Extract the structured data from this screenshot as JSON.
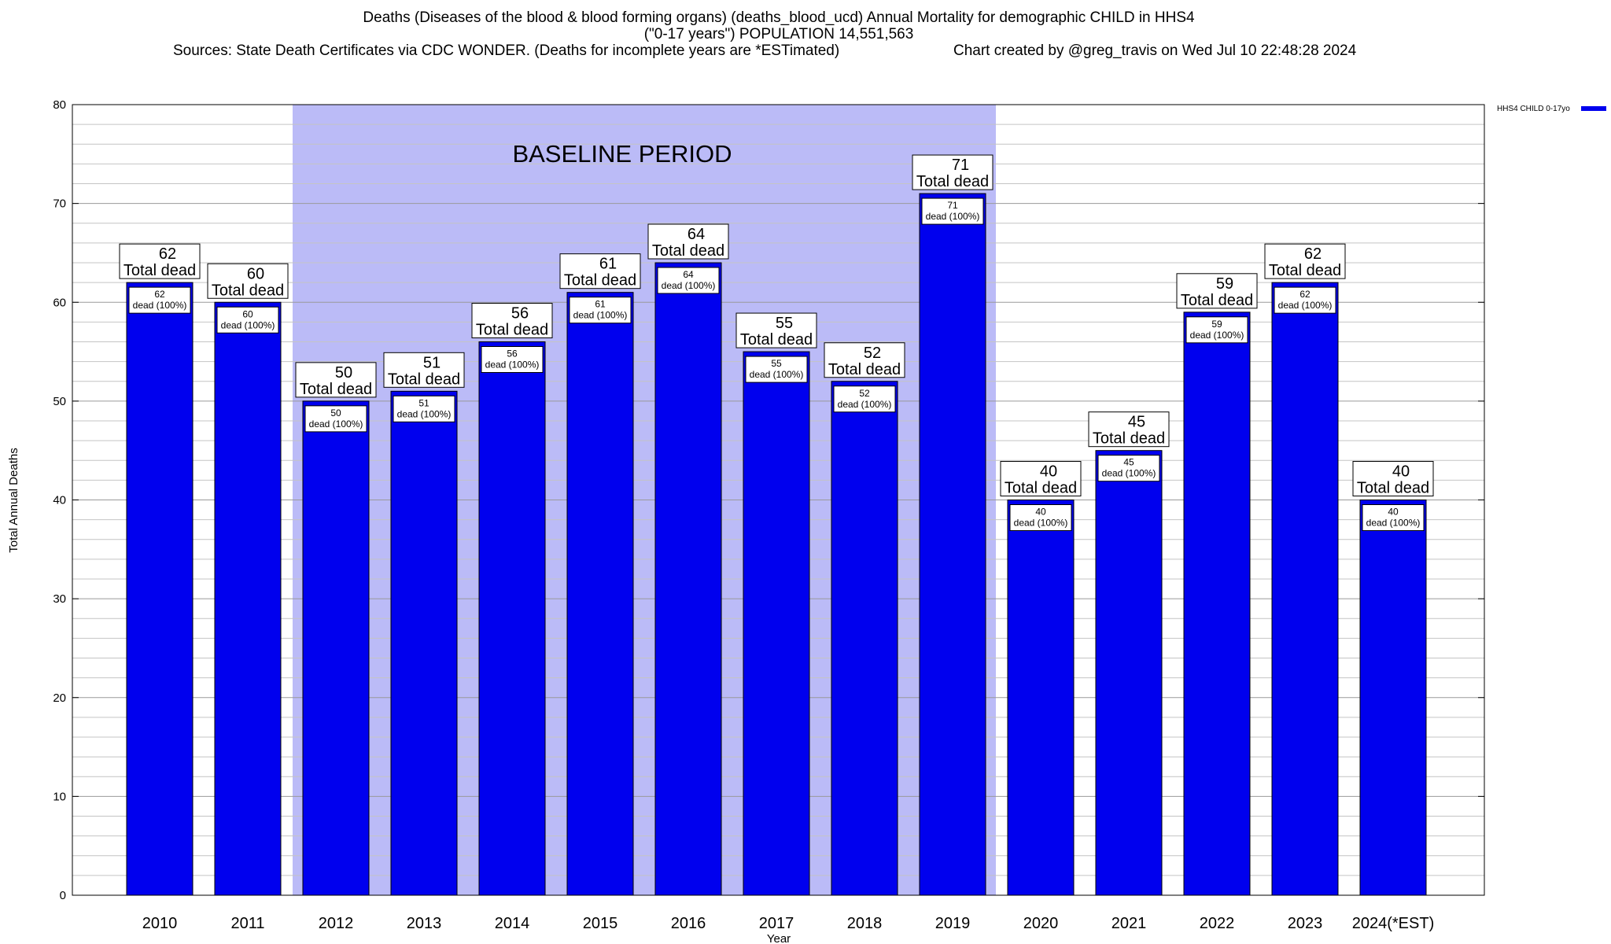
{
  "header": {
    "title_line1": "Deaths (Diseases of the blood & blood forming organs) (deaths_blood_ucd) Annual Mortality for demographic CHILD in HHS4",
    "title_line2": "(\"0-17 years\") POPULATION 14,551,563",
    "sources": "Sources: State Death Certificates via CDC WONDER. (Deaths for incomplete years are *ESTimated)",
    "credit": "Chart created by @greg_travis on Wed Jul 10 22:48:28 2024"
  },
  "chart_data": {
    "type": "bar",
    "xlabel": "Year",
    "ylabel": "Total Annual Deaths",
    "ylim": [
      0,
      80
    ],
    "y_ticks": [
      0,
      10,
      20,
      30,
      40,
      50,
      60,
      70,
      80
    ],
    "grid": true,
    "categories": [
      "2010",
      "2011",
      "2012",
      "2013",
      "2014",
      "2015",
      "2016",
      "2017",
      "2018",
      "2019",
      "2020",
      "2021",
      "2022",
      "2023",
      "2024(*EST)"
    ],
    "series": [
      {
        "name": "HHS4 CHILD 0-17yo",
        "values": [
          62,
          60,
          50,
          51,
          56,
          61,
          64,
          55,
          52,
          71,
          40,
          45,
          59,
          62,
          40
        ]
      }
    ],
    "bar_label_line2": "Total dead",
    "inner_label_suffix": "dead (100%)",
    "baseline": {
      "label": "BASELINE PERIOD",
      "from": "2012",
      "to": "2019"
    },
    "legend_position": "top-right",
    "colors": {
      "bar": "#0000ee",
      "baseline_shade": "#bbbbf7"
    }
  }
}
